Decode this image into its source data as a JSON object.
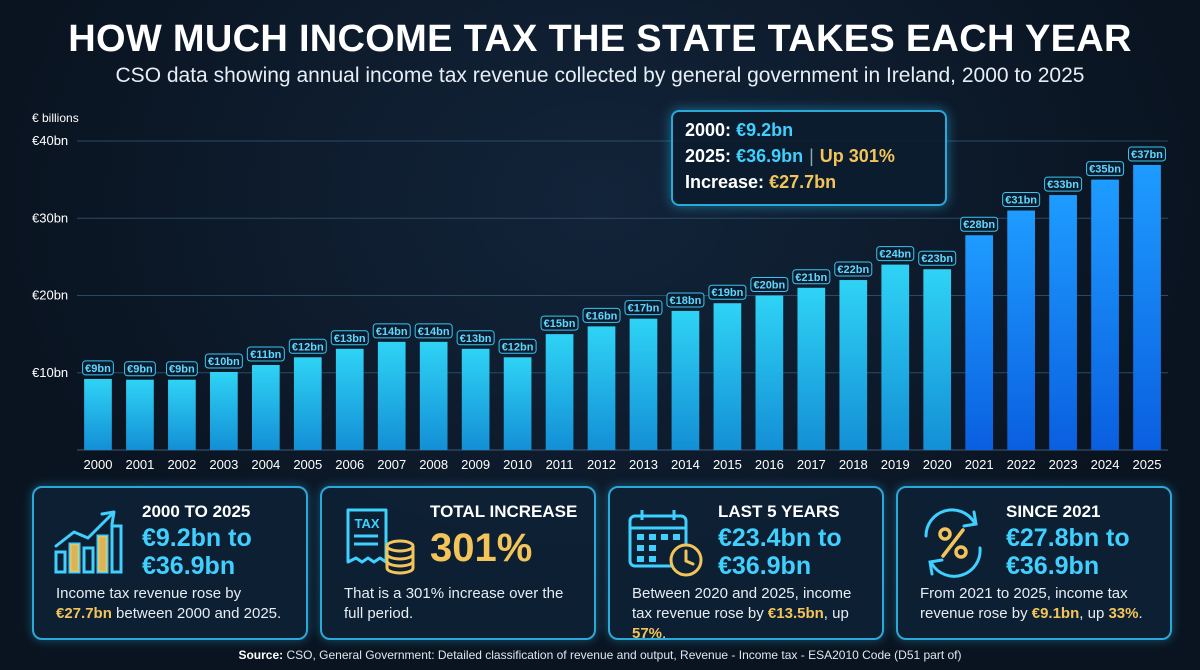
{
  "title": "HOW MUCH INCOME TAX THE STATE TAKES EACH YEAR",
  "subtitle": "CSO data showing annual income tax revenue collected by general government in Ireland, 2000 to 2025",
  "chart_data": {
    "type": "bar",
    "ylabel": "€ billions",
    "ylim": [
      0,
      40
    ],
    "yticks": [
      10,
      20,
      30,
      40
    ],
    "ytick_labels": [
      "€10bn",
      "€20bn",
      "€30bn",
      "€40bn"
    ],
    "grid": true,
    "categories": [
      "2000",
      "2001",
      "2002",
      "2003",
      "2004",
      "2005",
      "2006",
      "2007",
      "2008",
      "2009",
      "2010",
      "2011",
      "2012",
      "2013",
      "2014",
      "2015",
      "2016",
      "2017",
      "2018",
      "2019",
      "2020",
      "2021",
      "2022",
      "2023",
      "2024",
      "2025"
    ],
    "values": [
      9.2,
      9.1,
      9.1,
      10.1,
      11.0,
      12.0,
      13.1,
      14.0,
      14.0,
      13.1,
      12.0,
      15.0,
      16.0,
      17.0,
      18.0,
      19.0,
      20.0,
      21.0,
      22.0,
      24.0,
      23.4,
      27.8,
      31.0,
      33.0,
      35.0,
      36.9
    ],
    "data_labels": [
      "€9bn",
      "€9bn",
      "€9bn",
      "€10bn",
      "€11bn",
      "€12bn",
      "€13bn",
      "€14bn",
      "€14bn",
      "€13bn",
      "€12bn",
      "€15bn",
      "€16bn",
      "€17bn",
      "€18bn",
      "€19bn",
      "€20bn",
      "€21bn",
      "€22bn",
      "€24bn",
      "€23bn",
      "€28bn",
      "€31bn",
      "€33bn",
      "€35bn",
      "€37bn"
    ],
    "highlight_from": "2021",
    "colors": {
      "bar": "#1ec4ee",
      "bar_highlight": "#1a8cf5",
      "label": "#5fd8ff",
      "grid": "#2a4a66"
    }
  },
  "callout": {
    "line1_label": "2000:",
    "line1_value": "€9.2bn",
    "line2_label": "2025:",
    "line2_value": "€36.9bn",
    "line2_extra": "Up 301%",
    "line3_label": "Increase:",
    "line3_value": "€27.7bn"
  },
  "cards": [
    {
      "icon": "growth-chart-icon",
      "label": "2000 TO 2025",
      "value": "€9.2bn to €36.9bn",
      "text_before": "Income tax revenue rose by ",
      "text_highlight": "€27.7bn",
      "text_after": " between 2000 and 2025."
    },
    {
      "icon": "tax-receipt-coins-icon",
      "label": "TOTAL INCREASE",
      "value": "301%",
      "text_before": "That is a 301% increase over the full period.",
      "text_highlight": "",
      "text_after": ""
    },
    {
      "icon": "calendar-clock-icon",
      "label": "LAST 5 YEARS",
      "value": "€23.4bn to €36.9bn",
      "text_before": "Between 2020 and 2025, income tax revenue rose by ",
      "text_highlight": "€13.5bn",
      "text_after": ", up ",
      "text_highlight2": "57%",
      "text_end": "."
    },
    {
      "icon": "percent-cycle-icon",
      "label": "SINCE 2021",
      "value": "€27.8bn to €36.9bn",
      "text_before": "From 2021 to 2025, income tax revenue rose by ",
      "text_highlight": "€9.1bn",
      "text_after": ", up ",
      "text_highlight2": "33%",
      "text_end": "."
    }
  ],
  "source_label": "Source:",
  "source_text": " CSO, General Government: Detailed classification of revenue and output, Revenue - Income tax - ESA2010 Code (D51 part of)"
}
